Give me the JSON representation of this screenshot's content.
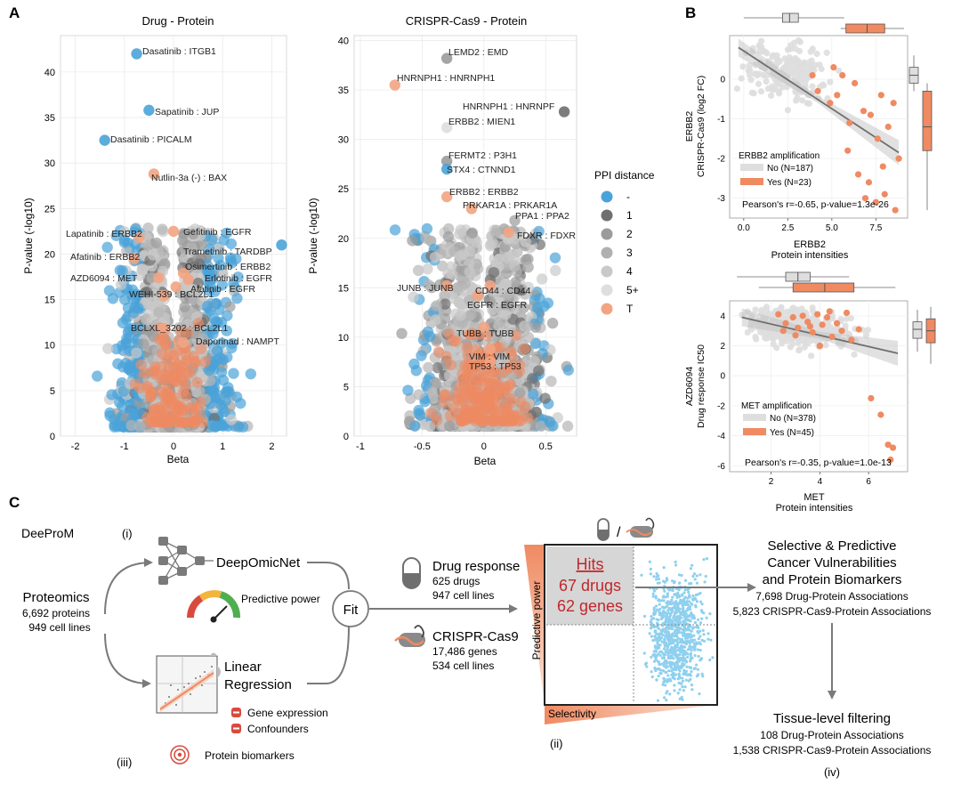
{
  "panels": {
    "a_letter": "A",
    "b_letter": "B",
    "c_letter": "C"
  },
  "colors": {
    "blue": "#4aa3d8",
    "blue_light": "#8fd0ee",
    "orange": "#ef8a62",
    "orange_light": "#f2a482",
    "grey_dark": "#6f6f6f",
    "grey_mid": "#9b9b9b",
    "grey_light": "#c9c9c9",
    "grey_pale": "#dedede"
  },
  "chart_data": [
    {
      "id": "drug_protein",
      "type": "scatter",
      "title": "Drug - Protein",
      "xlabel": "Beta",
      "ylabel": "P-value (-log10)",
      "xlim": [
        -2.3,
        2.3
      ],
      "ylim": [
        0,
        44
      ],
      "xticks": [
        -2,
        -1,
        0,
        1,
        2
      ],
      "yticks": [
        0,
        5,
        10,
        15,
        20,
        25,
        30,
        35,
        40
      ],
      "grid": true,
      "labeled_points": [
        {
          "label": "Dasatinib : ITGB1",
          "x": -0.75,
          "y": 42.0,
          "cat": "-"
        },
        {
          "label": "Sapatinib : JUP",
          "x": -0.5,
          "y": 35.8,
          "cat": "-"
        },
        {
          "label": "Dasatinib : PICALM",
          "x": -1.4,
          "y": 32.5,
          "cat": "-"
        },
        {
          "label": "Nutlin-3a (-) : BAX",
          "x": -0.4,
          "y": 28.8,
          "cat": "T"
        },
        {
          "label": "Gefitinib : EGFR",
          "x": 0.0,
          "y": 22.5,
          "cat": "T"
        },
        {
          "label": "Lapatinib : ERBB2",
          "x": -0.7,
          "y": 21.8,
          "cat": "T"
        },
        {
          "label": "Trametinib : TARDBP",
          "x": 2.2,
          "y": 21.0,
          "cat": "-"
        },
        {
          "label": "Afatinib : ERBB2",
          "x": -0.8,
          "y": 19.5,
          "cat": "T"
        },
        {
          "label": "Osimertinib : ERBB2",
          "x": 0.2,
          "y": 17.9,
          "cat": "T"
        },
        {
          "label": "AZD6094 : MET",
          "x": -0.3,
          "y": 17.4,
          "cat": "T"
        },
        {
          "label": "Erlotinib : EGFR",
          "x": 0.3,
          "y": 17.2,
          "cat": "T"
        },
        {
          "label": "Afatinib : EGFR",
          "x": 0.05,
          "y": 16.4,
          "cat": "T"
        },
        {
          "label": "WEHI-539 : BCL2L1",
          "x": -0.2,
          "y": 15.4,
          "cat": "T"
        },
        {
          "label": "BCLXL_3202 : BCL2L1",
          "x": -0.2,
          "y": 11.8,
          "cat": "T"
        },
        {
          "label": "Daporinad : NAMPT",
          "x": 0.2,
          "y": 10.3,
          "cat": "T"
        }
      ]
    },
    {
      "id": "crispr_protein",
      "type": "scatter",
      "title": "CRISPR-Cas9 - Protein",
      "xlabel": "Beta",
      "ylabel": "P-value (-log10)",
      "xlim": [
        -1.05,
        0.75
      ],
      "ylim": [
        0,
        40.5
      ],
      "xticks": [
        -1,
        -0.5,
        0,
        0.5
      ],
      "xtick_labels": [
        "-1",
        "-0.5",
        "0",
        "0.5"
      ],
      "yticks": [
        0,
        5,
        10,
        15,
        20,
        25,
        30,
        35,
        40
      ],
      "grid": true,
      "legend": {
        "title": "PPI distance",
        "entries": [
          "-",
          "1",
          "2",
          "3",
          "4",
          "5+",
          "T"
        ]
      },
      "labeled_points": [
        {
          "label": "LEMD2 : EMD",
          "x": -0.3,
          "y": 38.2,
          "cat": "2"
        },
        {
          "label": "HNRNPH1 : HNRNPH1",
          "x": -0.72,
          "y": 35.5,
          "cat": "T"
        },
        {
          "label": "HNRNPH1 : HNRNPF",
          "x": 0.65,
          "y": 32.8,
          "cat": "1"
        },
        {
          "label": "ERBB2 : MIEN1",
          "x": -0.3,
          "y": 31.2,
          "cat": "5+"
        },
        {
          "label": "FERMT2 : P3H1",
          "x": -0.3,
          "y": 27.8,
          "cat": "2"
        },
        {
          "label": "STX4 : CTNND1",
          "x": -0.3,
          "y": 27.0,
          "cat": "-"
        },
        {
          "label": "ERBB2 : ERBB2",
          "x": -0.3,
          "y": 24.2,
          "cat": "T"
        },
        {
          "label": "PRKAR1A : PRKAR1A",
          "x": -0.1,
          "y": 23.0,
          "cat": "T"
        },
        {
          "label": "PPA1 : PPA2",
          "x": 0.25,
          "y": 21.8,
          "cat": "3"
        },
        {
          "label": "FDXR : FDXR",
          "x": 0.2,
          "y": 20.6,
          "cat": "T"
        },
        {
          "label": "JUNB : JUNB",
          "x": -0.3,
          "y": 15.2,
          "cat": "T"
        },
        {
          "label": "CD44 : CD44",
          "x": 0.05,
          "y": 15.2,
          "cat": "T"
        },
        {
          "label": "EGFR : EGFR",
          "x": -0.05,
          "y": 14.2,
          "cat": "T"
        },
        {
          "label": "TUBB : TUBB",
          "x": 0.0,
          "y": 11.0,
          "cat": "T"
        },
        {
          "label": "VIM : VIM",
          "x": 0.05,
          "y": 8.8,
          "cat": "T"
        },
        {
          "label": "TP53 : TP53",
          "x": 0.05,
          "y": 7.5,
          "cat": "T"
        }
      ]
    },
    {
      "id": "erbb2_scatter",
      "type": "scatter",
      "xlabel": "ERBB2",
      "xlabel2": "Protein intensities",
      "ylabel": "ERBB2",
      "ylabel2": "CRISPR-Cas9 (log2 FC)",
      "xlim": [
        -0.8,
        9.3
      ],
      "ylim": [
        -3.5,
        1.1
      ],
      "xticks": [
        0.0,
        2.5,
        5.0,
        7.5
      ],
      "xtick_labels": [
        "0.0",
        "2.5",
        "5.0",
        "7.5"
      ],
      "yticks": [
        0,
        -1,
        -2,
        -3
      ],
      "ytick_labels": [
        "0",
        "-1",
        "-2",
        "-3"
      ],
      "regression": {
        "x0": -0.3,
        "y0": 0.8,
        "x1": 8.8,
        "y1": -1.85
      },
      "legend": {
        "title": "ERBB2 amplification",
        "entries": [
          "No (N=187)",
          "Yes (N=23)"
        ]
      },
      "annotation": "Pearson's r=-0.65, p-value=1.3e-26",
      "points_yes": [
        [
          4.2,
          -0.3
        ],
        [
          5.1,
          0.3
        ],
        [
          5.6,
          0.1
        ],
        [
          6.3,
          -0.1
        ],
        [
          7.8,
          -0.4
        ],
        [
          8.5,
          -0.6
        ],
        [
          6.8,
          -0.8
        ],
        [
          7.2,
          -0.9
        ],
        [
          8.2,
          -1.2
        ],
        [
          7.6,
          -1.5
        ],
        [
          5.9,
          -1.8
        ],
        [
          6.5,
          -2.4
        ],
        [
          7.1,
          -2.6
        ],
        [
          8.0,
          -2.9
        ],
        [
          7.5,
          -3.1
        ],
        [
          8.6,
          -3.3
        ],
        [
          6.9,
          -3.0
        ],
        [
          4.9,
          -0.6
        ],
        [
          3.9,
          0.1
        ],
        [
          6.0,
          -1.1
        ],
        [
          5.3,
          -0.4
        ],
        [
          8.8,
          -2.0
        ],
        [
          7.9,
          -2.2
        ]
      ],
      "boxplot_x": {
        "no": {
          "min": 0.0,
          "q1": 2.2,
          "median": 2.6,
          "q3": 3.1,
          "max": 5.7
        },
        "yes": {
          "min": 5.5,
          "q1": 5.8,
          "median": 7.0,
          "q3": 8.0,
          "max": 9.1
        }
      },
      "boxplot_y": {
        "no": {
          "min": -0.3,
          "q1": -0.1,
          "median": 0.1,
          "q3": 0.3,
          "max": 0.6
        },
        "yes": {
          "min": -3.3,
          "q1": -1.8,
          "median": -1.2,
          "q3": -0.3,
          "max": -0.1
        }
      }
    },
    {
      "id": "met_scatter",
      "type": "scatter",
      "xlabel": "MET",
      "xlabel2": "Protein intensities",
      "ylabel": "AZD6094",
      "ylabel2": "Drug response IC50",
      "xlim": [
        0.3,
        7.6
      ],
      "ylim": [
        -6.4,
        5.0
      ],
      "xticks": [
        2,
        4,
        6
      ],
      "yticks": [
        4,
        2,
        0,
        -2,
        -4,
        -6
      ],
      "regression": {
        "x0": 0.8,
        "y0": 3.9,
        "x1": 7.2,
        "y1": 1.5
      },
      "legend": {
        "title": "MET amplification",
        "entries": [
          "No (N=378)",
          "Yes (N=45)"
        ]
      },
      "annotation": "Pearson's r=-0.35, p-value=1.0e-13",
      "points_yes": [
        [
          2.3,
          4.1
        ],
        [
          2.6,
          3.5
        ],
        [
          2.9,
          3.9
        ],
        [
          3.1,
          3.2
        ],
        [
          3.3,
          4.0
        ],
        [
          3.5,
          3.6
        ],
        [
          3.7,
          2.9
        ],
        [
          3.9,
          4.1
        ],
        [
          4.1,
          3.4
        ],
        [
          4.3,
          3.9
        ],
        [
          4.5,
          2.6
        ],
        [
          4.7,
          3.5
        ],
        [
          4.9,
          3.0
        ],
        [
          5.1,
          4.2
        ],
        [
          5.3,
          2.4
        ],
        [
          5.6,
          3.1
        ],
        [
          3.0,
          2.7
        ],
        [
          2.5,
          3.0
        ],
        [
          4.0,
          2.0
        ],
        [
          6.1,
          -1.5
        ],
        [
          6.5,
          -2.6
        ],
        [
          6.8,
          -4.6
        ],
        [
          7.0,
          -4.8
        ],
        [
          6.9,
          -5.6
        ],
        [
          3.6,
          3.3
        ],
        [
          4.4,
          4.3
        ]
      ],
      "boxplot_x": {
        "no": {
          "min": 0.6,
          "q1": 2.6,
          "median": 3.1,
          "q3": 3.6,
          "max": 5.2
        },
        "yes": {
          "min": 1.5,
          "q1": 2.9,
          "median": 4.2,
          "q3": 5.4,
          "max": 7.1
        }
      },
      "boxplot_y": {
        "no": {
          "min": 1.6,
          "q1": 2.5,
          "median": 3.1,
          "q3": 3.6,
          "max": 4.4
        },
        "yes": {
          "min": 0.8,
          "q1": 2.2,
          "median": 3.0,
          "q3": 3.8,
          "max": 4.6
        }
      }
    }
  ],
  "diagram": {
    "brand": "DeeProM",
    "step_i": "(i)",
    "step_ii": "(ii)",
    "step_iii": "(iii)",
    "step_iv": "(iv)",
    "proteomics_title": "Proteomics",
    "proteomics_line1": "6,692 proteins",
    "proteomics_line2": "949 cell lines",
    "deepomicnet": "DeepOmicNet",
    "predictive_power": "Predictive power",
    "linear": "Linear",
    "regression": "Regression",
    "gene_expression": "Gene expression",
    "confounders": "Confounders",
    "protein_biomarkers": "Protein biomarkers",
    "fit": "Fit",
    "drug_title": "Drug response",
    "drug_line1": "625 drugs",
    "drug_line2": "947 cell lines",
    "crispr_title": "CRISPR-Cas9",
    "crispr_line1": "17,486 genes",
    "crispr_line2": "534 cell lines",
    "hits": "Hits",
    "hits_drugs": "67 drugs",
    "hits_genes": "62 genes",
    "axis_predictive": "Predictive power",
    "axis_selectivity": "Selectivity",
    "slash": "/",
    "result_title1": "Selective & Predictive",
    "result_title2": "Cancer Vulnerabilities",
    "result_title3": "and Protein Biomarkers",
    "result_line1": "7,698 Drug-Protein Associations",
    "result_line2": "5,823 CRISPR-Cas9-Protein Associations",
    "tissue_title": "Tissue-level filtering",
    "tissue_line1": "108 Drug-Protein Associations",
    "tissue_line2": "1,538 CRISPR-Cas9-Protein Associations"
  }
}
